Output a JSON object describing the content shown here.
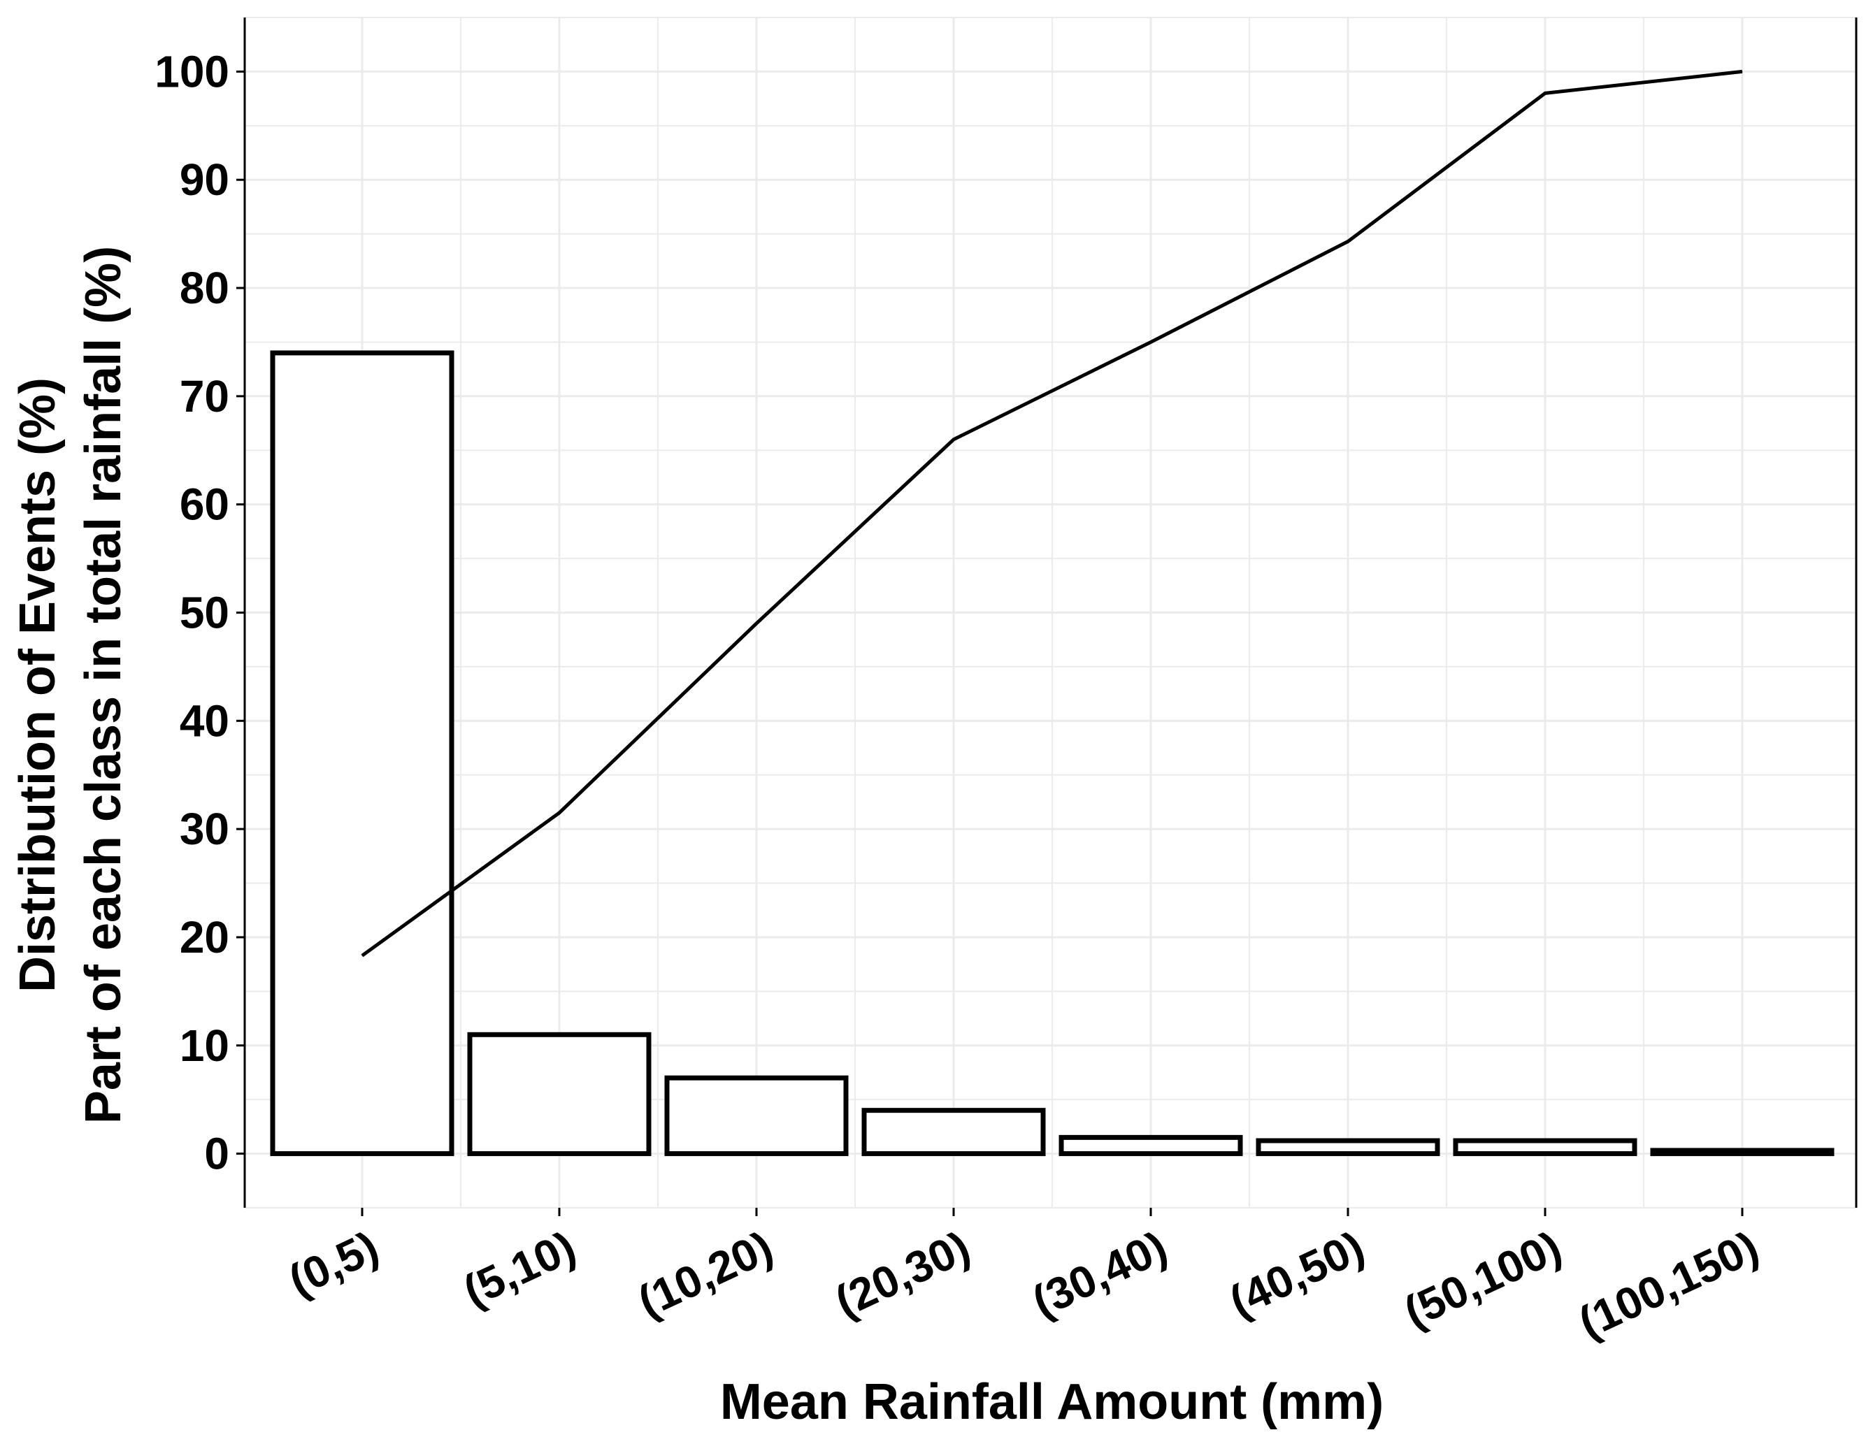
{
  "chart_data": {
    "type": "bar",
    "title": "",
    "xlabel": "Mean Rainfall Amount (mm)",
    "ylabel_lines": [
      "Distribution of Events (%)",
      "Part of each class in total rainfall (%)"
    ],
    "categories": [
      "(0,5)",
      "(5,10)",
      "(10,20)",
      "(20,30)",
      "(30,40)",
      "(40,50)",
      "(50,100)",
      "(100,150)"
    ],
    "series": [
      {
        "name": "Distribution of Events (%)",
        "type": "bar",
        "values": [
          74,
          11,
          7,
          4,
          1.5,
          1.2,
          1.2,
          0.3
        ]
      },
      {
        "name": "Part of each class in total rainfall (%)",
        "type": "line",
        "values": [
          18.3,
          31.5,
          49,
          66,
          75,
          84.3,
          98,
          100
        ]
      }
    ],
    "ylim": [
      -5,
      105
    ],
    "yticks": [
      0,
      10,
      20,
      30,
      40,
      50,
      60,
      70,
      80,
      90,
      100
    ],
    "grid": true,
    "colors": {
      "bar_fill": "#ffffff",
      "bar_stroke": "#000000",
      "line": "#000000",
      "grid": "#ebebeb",
      "axis": "#000000"
    }
  }
}
